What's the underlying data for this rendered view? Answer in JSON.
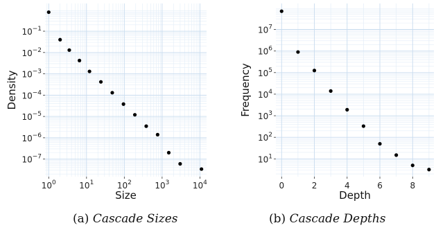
{
  "chart_data": [
    {
      "type": "scatter",
      "xlabel": "Size",
      "ylabel": "Density",
      "xscale": "log",
      "yscale": "log",
      "xlim": [
        0.8,
        15000
      ],
      "ylim": [
        1.5e-08,
        2.0
      ],
      "grid": true,
      "legend": "none",
      "x_ticks": [
        {
          "value": 1,
          "base": "10",
          "exp": "0"
        },
        {
          "value": 10,
          "base": "10",
          "exp": "1"
        },
        {
          "value": 100,
          "base": "10",
          "exp": "2"
        },
        {
          "value": 1000,
          "base": "10",
          "exp": "3"
        },
        {
          "value": 10000,
          "base": "10",
          "exp": "4"
        }
      ],
      "y_ticks": [
        {
          "value": 0.1,
          "base": "10",
          "exp": "−1"
        },
        {
          "value": 0.01,
          "base": "10",
          "exp": "−2"
        },
        {
          "value": 0.001,
          "base": "10",
          "exp": "−3"
        },
        {
          "value": 0.0001,
          "base": "10",
          "exp": "−4"
        },
        {
          "value": 1e-05,
          "base": "10",
          "exp": "−5"
        },
        {
          "value": 1e-06,
          "base": "10",
          "exp": "−6"
        },
        {
          "value": 1e-07,
          "base": "10",
          "exp": "−7"
        }
      ],
      "points": [
        {
          "x": 1,
          "y": 0.78
        },
        {
          "x": 2,
          "y": 0.04
        },
        {
          "x": 3.5,
          "y": 0.013
        },
        {
          "x": 6.5,
          "y": 0.0042
        },
        {
          "x": 12,
          "y": 0.0013
        },
        {
          "x": 24,
          "y": 0.00042
        },
        {
          "x": 48,
          "y": 0.00013
        },
        {
          "x": 95,
          "y": 3.8e-05
        },
        {
          "x": 190,
          "y": 1.2e-05
        },
        {
          "x": 380,
          "y": 3.5e-06
        },
        {
          "x": 760,
          "y": 1.4e-06
        },
        {
          "x": 1500,
          "y": 2e-07
        },
        {
          "x": 3000,
          "y": 6e-08
        },
        {
          "x": 11000,
          "y": 3.4e-08
        }
      ]
    },
    {
      "type": "scatter",
      "xlabel": "Depth",
      "ylabel": "Frequency",
      "xscale": "linear",
      "yscale": "log",
      "xlim": [
        -0.35,
        9.3
      ],
      "ylim": [
        1.5,
        160000000.0
      ],
      "grid": true,
      "legend": "none",
      "x_ticks": [
        {
          "value": 0,
          "label": "0"
        },
        {
          "value": 2,
          "label": "2"
        },
        {
          "value": 4,
          "label": "4"
        },
        {
          "value": 6,
          "label": "6"
        },
        {
          "value": 8,
          "label": "8"
        }
      ],
      "y_ticks": [
        {
          "value": 10,
          "base": "10",
          "exp": "1"
        },
        {
          "value": 100,
          "base": "10",
          "exp": "2"
        },
        {
          "value": 1000,
          "base": "10",
          "exp": "3"
        },
        {
          "value": 10000,
          "base": "10",
          "exp": "4"
        },
        {
          "value": 100000,
          "base": "10",
          "exp": "5"
        },
        {
          "value": 1000000,
          "base": "10",
          "exp": "6"
        },
        {
          "value": 10000000,
          "base": "10",
          "exp": "7"
        }
      ],
      "points": [
        {
          "x": 0,
          "y": 70000000
        },
        {
          "x": 1,
          "y": 900000
        },
        {
          "x": 2,
          "y": 125000
        },
        {
          "x": 3,
          "y": 14000
        },
        {
          "x": 4,
          "y": 1900
        },
        {
          "x": 5,
          "y": 330
        },
        {
          "x": 6,
          "y": 50
        },
        {
          "x": 7,
          "y": 15
        },
        {
          "x": 8,
          "y": 5
        },
        {
          "x": 9,
          "y": 3.2
        }
      ]
    }
  ],
  "captions": [
    {
      "label": "(a)",
      "text": "Cascade Sizes"
    },
    {
      "label": "(b)",
      "text": "Cascade Depths"
    }
  ]
}
